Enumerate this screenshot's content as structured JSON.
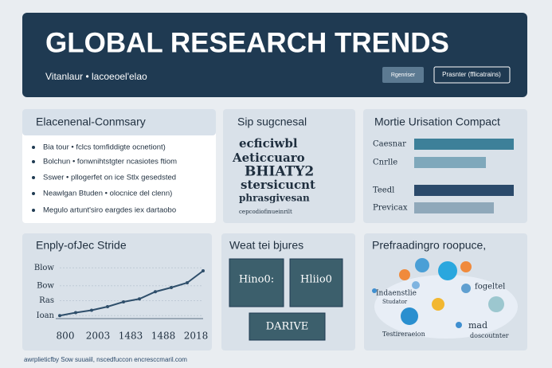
{
  "header": {
    "title": "GLOBAL RESEARCH TRENDS",
    "subtitle": "Vitanlaur  •  lacoeoel'elao",
    "buttons": [
      "Rgenriser",
      "Prasnter (fflicatrains)"
    ]
  },
  "summary": {
    "title": "Elacenenal-Conmsary",
    "items": [
      "Bia tour  •  fclcs tomfiddigte ocnetiont)",
      "Bolchun  •  fonwnihtstgter ncasiotes ftiom",
      "Sswer  •  pllogerfet on ice  Stlx gesedsted",
      "Neawlgan Btuden  •  olocnice del clenn)",
      "Megulo artunt'siro eargdes iex dartaobo"
    ]
  },
  "keywords": {
    "title": "Sip sugcnesal",
    "words": [
      "ecficiwbl",
      "Aeticcuaro",
      "BHIATY2",
      "stersicucnt",
      "phrasgivesan",
      "cepcodiofinueinrilt"
    ]
  },
  "comparison": {
    "title": "Mortie Urisation Compact",
    "type": "bar",
    "categories": [
      "Caesnar",
      "Cnrlle",
      "Teedl",
      "Previcax"
    ],
    "values": [
      100,
      72,
      100,
      80
    ],
    "colors": [
      "#3d8099",
      "#7fa8bb",
      "#2b4a6b",
      "#8fa8ba"
    ],
    "xlim": [
      0,
      100
    ]
  },
  "trend": {
    "title": "Enply-ofJec Stride",
    "type": "line",
    "values": [
      5,
      10,
      14,
      20,
      28,
      33,
      45,
      52,
      60,
      80
    ],
    "color": "#2f4f6b",
    "ylim": [
      0,
      100
    ],
    "yticks": [
      {
        "value": 85,
        "label": "Blow"
      },
      {
        "value": 55,
        "label": "Bow"
      },
      {
        "value": 30,
        "label": "Ras"
      },
      {
        "value": 5,
        "label": "Ioan"
      }
    ],
    "xlabels": [
      "800",
      "2003",
      "1483",
      "1488",
      "2018"
    ]
  },
  "figures": {
    "title": "Weat tei bjures",
    "tiles": [
      "Hino0:",
      "Hliio0",
      "DARIVE"
    ]
  },
  "network": {
    "title": "Prefraadingro roopuce,",
    "labels": [
      "Indaenstlie",
      "Studator",
      "fogeltel",
      "mad",
      "Testireraeion",
      "doscoutnter"
    ]
  },
  "footer": "awrplieticfby Sow suuaiil, nscedfuccon encresccmaril.com"
}
